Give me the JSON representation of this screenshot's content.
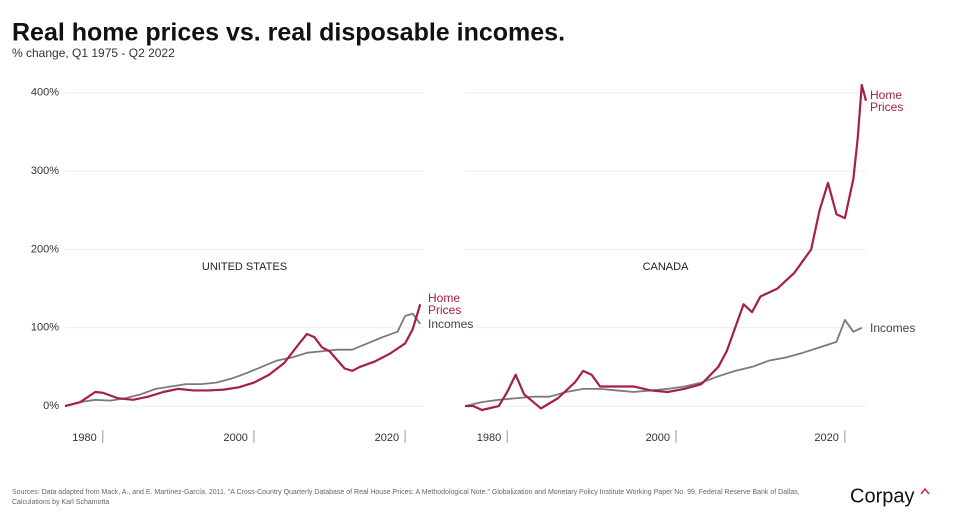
{
  "title": "Real home prices vs. real disposable incomes.",
  "subtitle": "% change, Q1 1975 - Q2 2022",
  "source": "Sources: Data adapted from Mack, A., and E. Martínez-García. 2011. \"A Cross-Country Quarterly Database of Real House Prices: A Methodological Note.\" Globalization and Monetary Policy Institute Working Paper No. 99, Federal Reserve Bank of Dallas, Calculations by Karl Schamotta",
  "brand": "Corpay",
  "chart_data": [
    {
      "type": "line",
      "title": "UNITED STATES",
      "xlim": [
        1975,
        2022.5
      ],
      "xticks": [
        1980,
        2000,
        2020
      ],
      "ylim": [
        -5,
        410
      ],
      "yticks": [
        {
          "value": 0,
          "label": "0%"
        },
        {
          "value": 100,
          "label": "100%"
        },
        {
          "value": 200,
          "label": "200%"
        },
        {
          "value": 300,
          "label": "300%"
        },
        {
          "value": 400,
          "label": "400%"
        }
      ],
      "grid": true,
      "series": [
        {
          "name": "Incomes",
          "color": "#7a7a7a",
          "x": [
            1975,
            1977,
            1979,
            1981,
            1983,
            1985,
            1987,
            1989,
            1991,
            1993,
            1995,
            1997,
            1999,
            2001,
            2003,
            2005,
            2007,
            2009,
            2011,
            2013,
            2015,
            2017,
            2019,
            2020,
            2021,
            2022
          ],
          "values": [
            0,
            5,
            8,
            7,
            10,
            15,
            22,
            25,
            28,
            28,
            30,
            35,
            42,
            50,
            58,
            62,
            68,
            70,
            72,
            72,
            80,
            88,
            95,
            115,
            118,
            105
          ]
        },
        {
          "name": "Home Prices",
          "color": "#a4213f",
          "x": [
            1975,
            1977,
            1979,
            1980,
            1982,
            1984,
            1986,
            1988,
            1990,
            1992,
            1994,
            1996,
            1998,
            2000,
            2002,
            2004,
            2006,
            2007,
            2008,
            2009,
            2010,
            2012,
            2013,
            2014,
            2016,
            2018,
            2020,
            2021,
            2022
          ],
          "values": [
            0,
            5,
            18,
            17,
            10,
            8,
            12,
            18,
            22,
            20,
            20,
            21,
            24,
            30,
            40,
            55,
            80,
            92,
            88,
            75,
            70,
            48,
            45,
            50,
            57,
            67,
            80,
            98,
            130
          ]
        }
      ]
    },
    {
      "type": "line",
      "title": "CANADA",
      "xlim": [
        1975,
        2022.5
      ],
      "xticks": [
        1980,
        2000,
        2020
      ],
      "ylim": [
        -5,
        410
      ],
      "yticks": [
        0,
        100,
        200,
        300,
        400
      ],
      "grid": true,
      "series": [
        {
          "name": "Incomes",
          "color": "#7a7a7a",
          "x": [
            1975,
            1977,
            1979,
            1981,
            1983,
            1985,
            1987,
            1989,
            1991,
            1993,
            1995,
            1997,
            1999,
            2001,
            2003,
            2005,
            2007,
            2009,
            2011,
            2013,
            2015,
            2017,
            2019,
            2020,
            2021,
            2022
          ],
          "values": [
            0,
            5,
            8,
            10,
            12,
            12,
            18,
            22,
            22,
            20,
            18,
            20,
            22,
            25,
            30,
            38,
            45,
            50,
            58,
            62,
            68,
            75,
            82,
            110,
            95,
            100
          ]
        },
        {
          "name": "Home Prices",
          "color": "#a4213f",
          "x": [
            1975,
            1976,
            1977,
            1979,
            1980,
            1981,
            1982,
            1984,
            1986,
            1988,
            1989,
            1990,
            1991,
            1993,
            1995,
            1997,
            1999,
            2001,
            2003,
            2005,
            2006,
            2007,
            2008,
            2009,
            2010,
            2012,
            2014,
            2016,
            2017,
            2018,
            2019,
            2020,
            2021,
            2021.5,
            2022,
            2022.5
          ],
          "values": [
            0,
            0,
            -5,
            0,
            18,
            40,
            15,
            -3,
            10,
            30,
            45,
            40,
            25,
            25,
            25,
            20,
            18,
            22,
            28,
            50,
            70,
            100,
            130,
            120,
            140,
            150,
            170,
            200,
            250,
            285,
            245,
            240,
            290,
            340,
            410,
            390
          ]
        }
      ]
    }
  ]
}
